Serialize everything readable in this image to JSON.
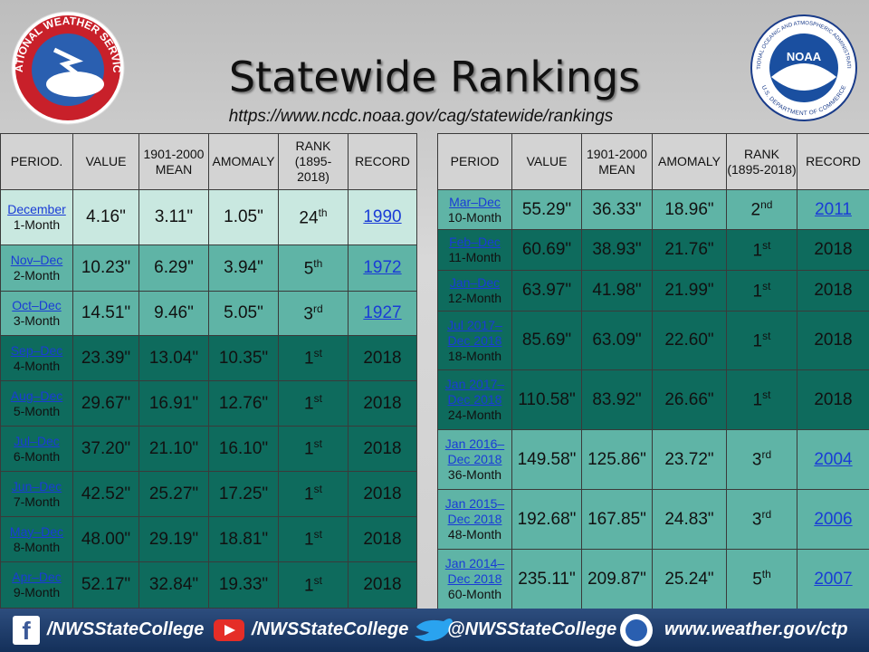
{
  "header": {
    "title": "Statewide Rankings",
    "url": "https://www.ncdc.noaa.gov/cag/statewide/rankings",
    "nws_logo": "NATIONAL WEATHER SERVICE",
    "noaa_logo": {
      "name": "NOAA",
      "top": "NATIONAL OCEANIC AND ATMOSPHERIC ADMINISTRATION",
      "bottom": "U.S. DEPARTMENT OF COMMERCE"
    }
  },
  "tables": [
    {
      "columns": [
        "PERIOD.",
        "VALUE",
        "1901-2000 MEAN",
        "AMOMALY",
        "RANK (1895-2018)",
        "RECORD"
      ],
      "rows": [
        {
          "period": "December",
          "months": "1-Month",
          "value": "4.16\"",
          "mean": "3.11\"",
          "anomaly": "1.05\"",
          "rank": "24",
          "rank_suffix": "th",
          "record": "1990",
          "record_link": true,
          "color": "#c9e8e0"
        },
        {
          "period": "Nov–Dec",
          "months": "2-Month",
          "value": "10.23\"",
          "mean": "6.29\"",
          "anomaly": "3.94\"",
          "rank": "5",
          "rank_suffix": "th",
          "record": "1972",
          "record_link": true,
          "color": "#5fb4a6"
        },
        {
          "period": "Oct–Dec",
          "months": "3-Month",
          "value": "14.51\"",
          "mean": "9.46\"",
          "anomaly": "5.05\"",
          "rank": "3",
          "rank_suffix": "rd",
          "record": "1927",
          "record_link": true,
          "color": "#5fb4a6"
        },
        {
          "period": "Sep–Dec",
          "months": "4-Month",
          "value": "23.39\"",
          "mean": "13.04\"",
          "anomaly": "10.35\"",
          "rank": "1",
          "rank_suffix": "st",
          "record": "2018",
          "record_link": false,
          "color": "#0e6b5d"
        },
        {
          "period": "Aug–Dec",
          "months": "5-Month",
          "value": "29.67\"",
          "mean": "16.91\"",
          "anomaly": "12.76\"",
          "rank": "1",
          "rank_suffix": "st",
          "record": "2018",
          "record_link": false,
          "color": "#0e6b5d"
        },
        {
          "period": "Jul–Dec",
          "months": "6-Month",
          "value": "37.20\"",
          "mean": "21.10\"",
          "anomaly": "16.10\"",
          "rank": "1",
          "rank_suffix": "st",
          "record": "2018",
          "record_link": false,
          "color": "#0e6b5d"
        },
        {
          "period": "Jun–Dec",
          "months": "7-Month",
          "value": "42.52\"",
          "mean": "25.27\"",
          "anomaly": "17.25\"",
          "rank": "1",
          "rank_suffix": "st",
          "record": "2018",
          "record_link": false,
          "color": "#0e6b5d"
        },
        {
          "period": "May–Dec",
          "months": "8-Month",
          "value": "48.00\"",
          "mean": "29.19\"",
          "anomaly": "18.81\"",
          "rank": "1",
          "rank_suffix": "st",
          "record": "2018",
          "record_link": false,
          "color": "#0e6b5d"
        },
        {
          "period": "Apr–Dec",
          "months": "9-Month",
          "value": "52.17\"",
          "mean": "32.84\"",
          "anomaly": "19.33\"",
          "rank": "1",
          "rank_suffix": "st",
          "record": "2018",
          "record_link": false,
          "color": "#0e6b5d"
        }
      ]
    },
    {
      "columns": [
        "PERIOD",
        "VALUE",
        "1901-2000 MEAN",
        "AMOMALY",
        "RANK (1895-2018)",
        "RECORD"
      ],
      "rows": [
        {
          "period": "Mar–Dec",
          "months": "10-Month",
          "value": "55.29\"",
          "mean": "36.33\"",
          "anomaly": "18.96\"",
          "rank": "2",
          "rank_suffix": "nd",
          "record": "2011",
          "record_link": true,
          "color": "#5fb4a6"
        },
        {
          "period": "Feb–Dec",
          "months": "11-Month",
          "value": "60.69\"",
          "mean": "38.93\"",
          "anomaly": "21.76\"",
          "rank": "1",
          "rank_suffix": "st",
          "record": "2018",
          "record_link": false,
          "color": "#0e6b5d"
        },
        {
          "period": "Jan–Dec",
          "months": "12-Month",
          "value": "63.97\"",
          "mean": "41.98\"",
          "anomaly": "21.99\"",
          "rank": "1",
          "rank_suffix": "st",
          "record": "2018",
          "record_link": false,
          "color": "#0e6b5d"
        },
        {
          "period": "Jul 2017–Dec 2018",
          "months": "18-Month",
          "value": "85.69\"",
          "mean": "63.09\"",
          "anomaly": "22.60\"",
          "rank": "1",
          "rank_suffix": "st",
          "record": "2018",
          "record_link": false,
          "color": "#0e6b5d"
        },
        {
          "period": "Jan 2017–Dec 2018",
          "months": "24-Month",
          "value": "110.58\"",
          "mean": "83.92\"",
          "anomaly": "26.66\"",
          "rank": "1",
          "rank_suffix": "st",
          "record": "2018",
          "record_link": false,
          "color": "#0e6b5d"
        },
        {
          "period": "Jan 2016–Dec 2018",
          "months": "36-Month",
          "value": "149.58\"",
          "mean": "125.86\"",
          "anomaly": "23.72\"",
          "rank": "3",
          "rank_suffix": "rd",
          "record": "2004",
          "record_link": true,
          "color": "#5fb4a6"
        },
        {
          "period": "Jan 2015–Dec 2018",
          "months": "48-Month",
          "value": "192.68\"",
          "mean": "167.85\"",
          "anomaly": "24.83\"",
          "rank": "3",
          "rank_suffix": "rd",
          "record": "2006",
          "record_link": true,
          "color": "#5fb4a6"
        },
        {
          "period": "Jan 2014–Dec 2018",
          "months": "60-Month",
          "value": "235.11\"",
          "mean": "209.87\"",
          "anomaly": "25.24\"",
          "rank": "5",
          "rank_suffix": "th",
          "record": "2007",
          "record_link": true,
          "color": "#5fb4a6"
        }
      ]
    }
  ],
  "footer": {
    "facebook": "/NWSStateCollege",
    "youtube": "/NWSStateCollege",
    "twitter": "@NWSStateCollege",
    "website": "www.weather.gov/ctp"
  }
}
